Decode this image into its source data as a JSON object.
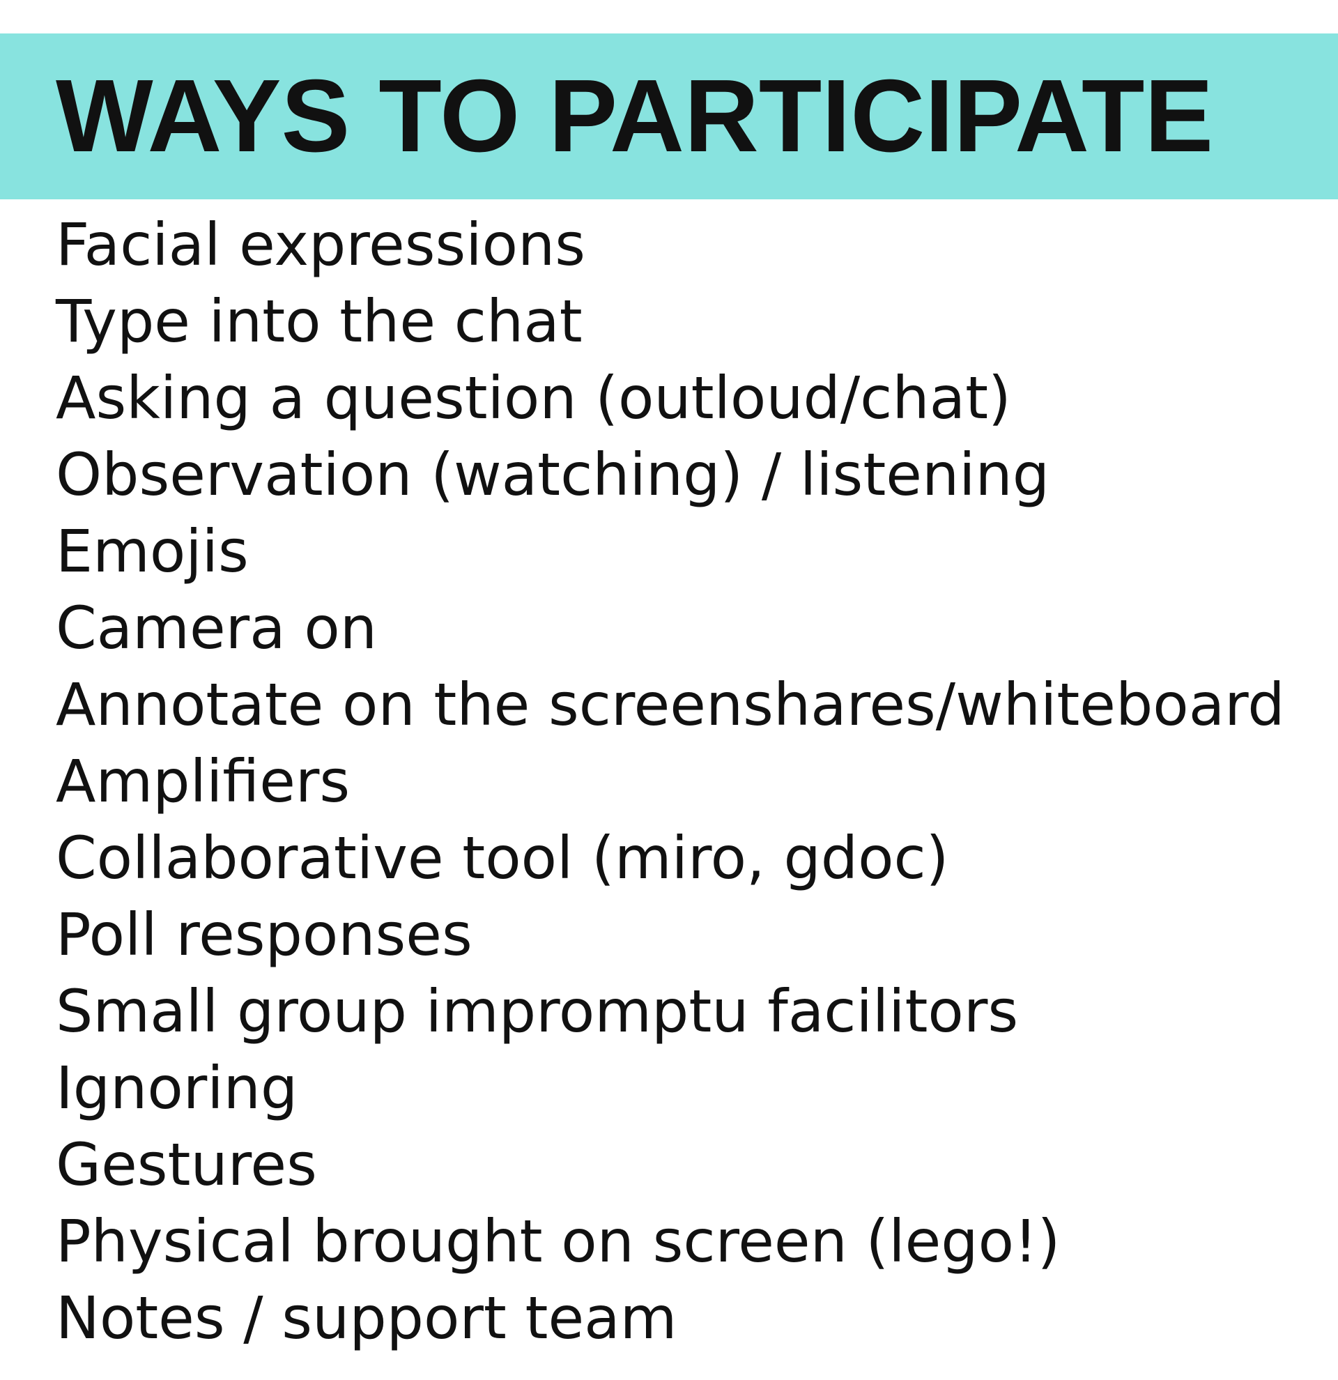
{
  "header": {
    "title": "WAYS TO PARTICIPATE"
  },
  "colors": {
    "banner_background": "#88e3df",
    "text": "#111111",
    "page_background": "#ffffff"
  },
  "items": [
    "Facial expressions",
    "Type into the chat",
    "Asking a question (outloud/chat)",
    "Observation (watching) / listening",
    "Emojis",
    "Camera on",
    "Annotate on the screenshares/whiteboard",
    "Amplifiers",
    "Collaborative tool (miro, gdoc)",
    "Poll responses",
    "Small group impromptu facilitors",
    "Ignoring",
    "Gestures",
    "Physical brought on screen (lego!)",
    "Notes / support team"
  ]
}
